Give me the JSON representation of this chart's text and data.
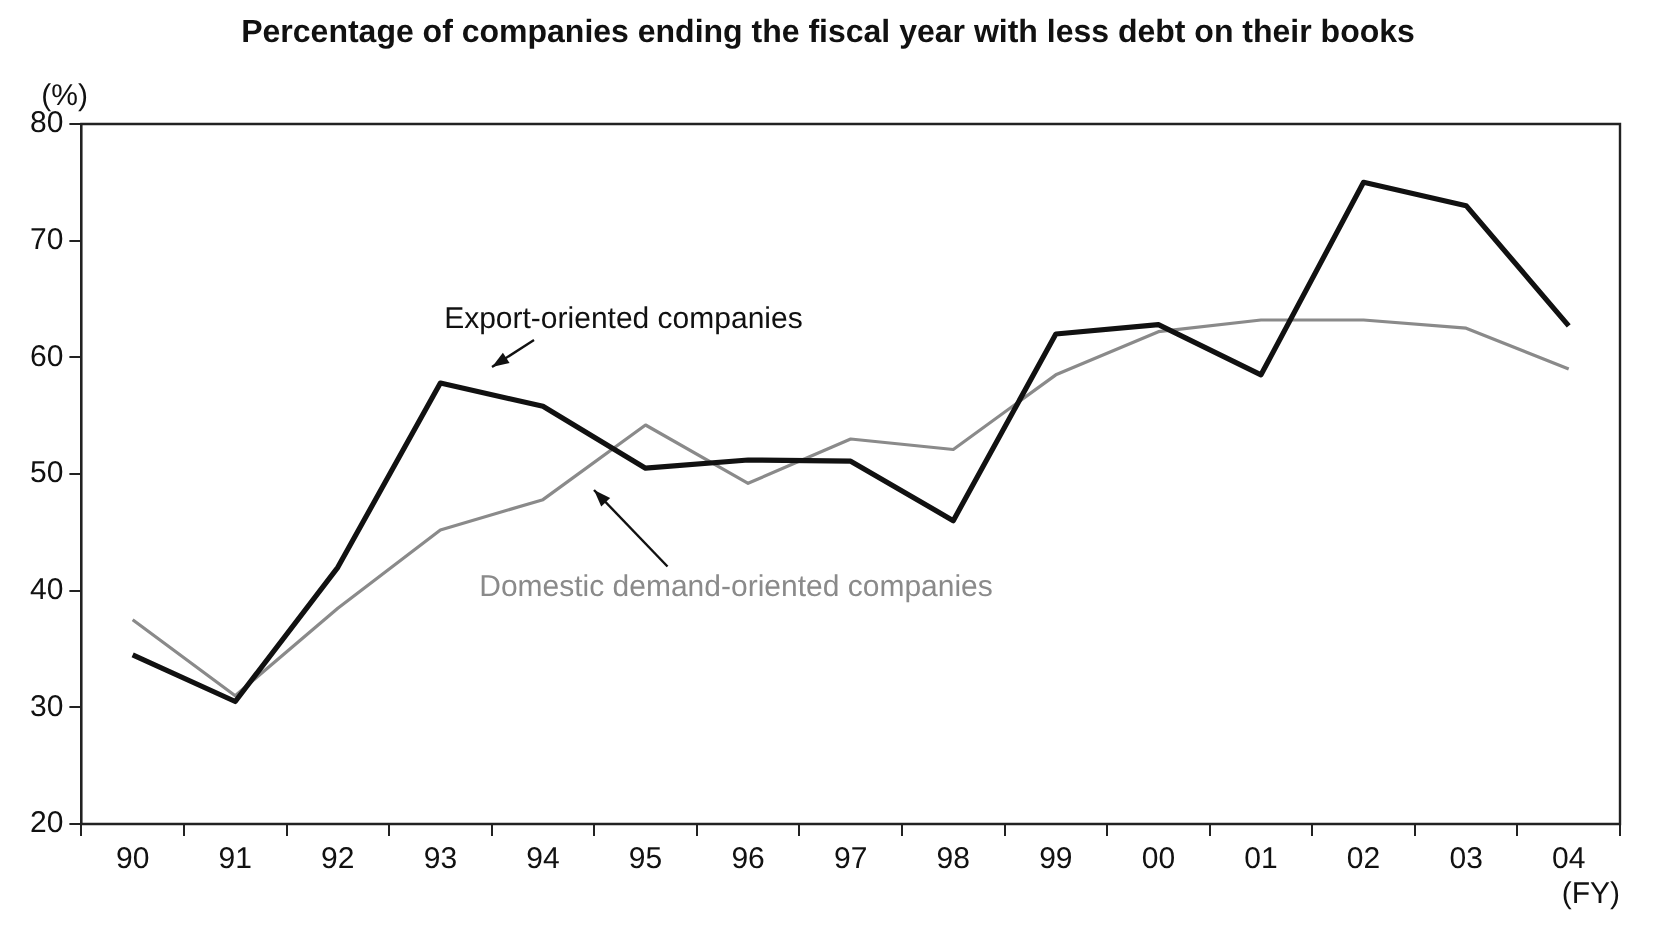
{
  "chart_data": {
    "type": "line",
    "title": "Percentage of companies ending the fiscal year with less debt on their books",
    "ylabel": "(%)",
    "xlabel": "(FY)",
    "categories": [
      "90",
      "91",
      "92",
      "93",
      "94",
      "95",
      "96",
      "97",
      "98",
      "99",
      "00",
      "01",
      "02",
      "03",
      "04"
    ],
    "series": [
      {
        "name": "Export-oriented companies",
        "color": "#111111",
        "values": [
          34.5,
          30.5,
          42,
          57.8,
          55.8,
          50.5,
          51.2,
          51.1,
          46,
          62,
          62.8,
          58.5,
          75,
          73,
          62.7
        ]
      },
      {
        "name": "Domestic demand-oriented companies",
        "color": "#8a8a8a",
        "values": [
          37.5,
          31,
          38.5,
          45.2,
          47.8,
          54.2,
          49.2,
          53,
          52.1,
          58.5,
          62.2,
          63.2,
          63.2,
          62.5,
          59
        ]
      }
    ],
    "ylim": [
      20,
      80
    ],
    "yticks": [
      20,
      30,
      40,
      50,
      60,
      70,
      80
    ],
    "grid": false,
    "legend": false,
    "marker": "none",
    "line_style": "solid"
  }
}
